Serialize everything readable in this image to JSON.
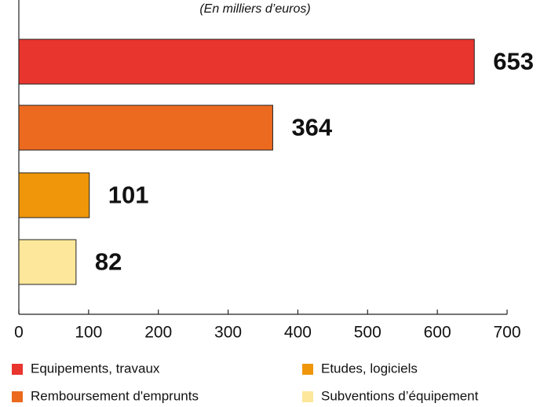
{
  "chart_data": {
    "type": "bar",
    "orientation": "horizontal",
    "subtitle": "(En milliers d’euros)",
    "categories": [
      "Equipements, travaux",
      "Remboursement d'emprunts",
      "Etudes, logiciels",
      "Subventions d’équipement"
    ],
    "values": [
      653,
      364,
      101,
      82
    ],
    "colors": [
      "#e8352e",
      "#ec6a1f",
      "#f0960a",
      "#fde79a"
    ],
    "xlim": [
      0,
      700
    ],
    "xticks": [
      0,
      100,
      200,
      300,
      400,
      500,
      600,
      700
    ]
  }
}
